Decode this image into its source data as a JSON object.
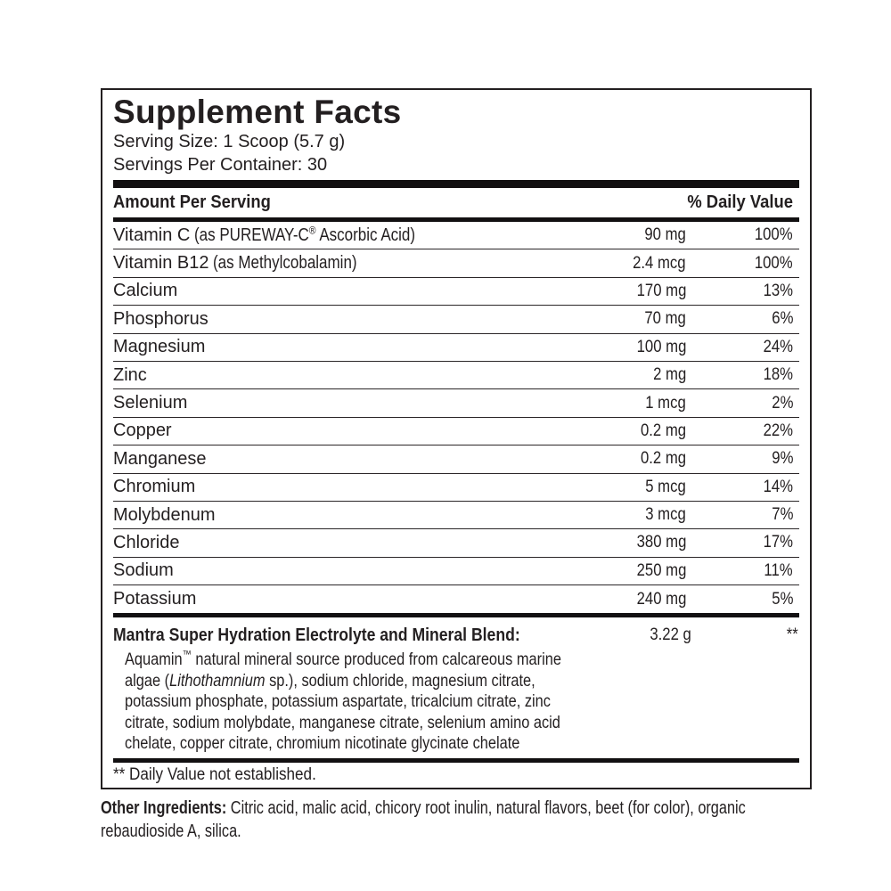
{
  "colors": {
    "text": "#231f20",
    "background": "#ffffff",
    "rule": "#121011"
  },
  "panel": {
    "title": "Supplement Facts",
    "serving_size": "Serving Size: 1 Scoop (5.7 g)",
    "servings_per_container": "Servings Per Container: 30",
    "footnote": "** Daily Value not established."
  },
  "table": {
    "header_left": "Amount Per Serving",
    "header_right": "% Daily Value",
    "rows": [
      {
        "name": "Vitamin C",
        "detail": "(as PUREWAY-C® Ascorbic Acid)",
        "amount": "90 mg",
        "dv": "100%"
      },
      {
        "name": "Vitamin B12",
        "detail": "(as Methylcobalamin)",
        "amount": "2.4 mcg",
        "dv": "100%"
      },
      {
        "name": "Calcium",
        "detail": "",
        "amount": "170 mg",
        "dv": "13%"
      },
      {
        "name": "Phosphorus",
        "detail": "",
        "amount": "70 mg",
        "dv": "6%"
      },
      {
        "name": "Magnesium",
        "detail": "",
        "amount": "100 mg",
        "dv": "24%"
      },
      {
        "name": "Zinc",
        "detail": "",
        "amount": "2 mg",
        "dv": "18%"
      },
      {
        "name": "Selenium",
        "detail": "",
        "amount": "1 mcg",
        "dv": "2%"
      },
      {
        "name": "Copper",
        "detail": "",
        "amount": "0.2 mg",
        "dv": "22%"
      },
      {
        "name": "Manganese",
        "detail": "",
        "amount": "0.2 mg",
        "dv": "9%"
      },
      {
        "name": "Chromium",
        "detail": "",
        "amount": "5 mcg",
        "dv": "14%"
      },
      {
        "name": "Molybdenum",
        "detail": "",
        "amount": "3 mcg",
        "dv": "7%"
      },
      {
        "name": "Chloride",
        "detail": "",
        "amount": "380 mg",
        "dv": "17%"
      },
      {
        "name": "Sodium",
        "detail": "",
        "amount": "250 mg",
        "dv": "11%"
      },
      {
        "name": "Potassium",
        "detail": "",
        "amount": "240 mg",
        "dv": "5%"
      }
    ]
  },
  "blend": {
    "name": "Mantra Super Hydration Electrolyte and Mineral Blend:",
    "amount": "3.22 g",
    "daily_value": "**",
    "description_lines": [
      [
        {
          "t": "Aquamin"
        },
        {
          "t": "™",
          "s": "sup"
        },
        {
          "t": " natural mineral source produced from calcareous marine"
        }
      ],
      [
        {
          "t": "algae ("
        },
        {
          "t": "Lithothamnium",
          "s": "i"
        },
        {
          "t": " sp.), sodium chloride, magnesium citrate,"
        }
      ],
      [
        {
          "t": "potassium phosphate, potassium aspartate, tricalcium citrate, zinc"
        }
      ],
      [
        {
          "t": "citrate, sodium molybdate, manganese citrate, selenium amino acid"
        }
      ],
      [
        {
          "t": "chelate, copper citrate, chromium nicotinate glycinate chelate"
        }
      ]
    ]
  },
  "other_ingredients": {
    "lines": [
      [
        {
          "t": "Other Ingredients: ",
          "s": "b"
        },
        {
          "t": "Citric acid, malic acid, chicory root inulin, natural flavors, beet (for color), organic"
        }
      ],
      [
        {
          "t": "rebaudioside A, silica."
        }
      ]
    ]
  }
}
